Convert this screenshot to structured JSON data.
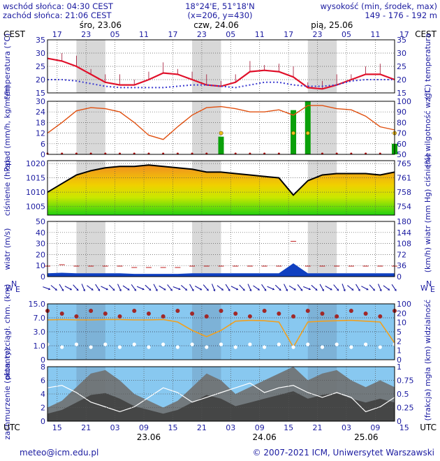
{
  "header": {
    "sunrise": "wschód słońca: 04:30 CEST",
    "sunset": "zachód słońca: 21:06 CEST",
    "coords": "18°24'E, 51°18'N",
    "grid": "(x=206, y=430)",
    "height_title": "wysokość (min, środek, max)",
    "height_values": "149 - 176 - 192 m"
  },
  "top_axis": {
    "tz": "CEST",
    "hours": [
      "17",
      "23",
      "05",
      "11",
      "17",
      "23",
      "05",
      "11",
      "17",
      "23",
      "05",
      "11",
      "17"
    ],
    "days": [
      "śro, 23.06",
      "czw, 24.06",
      "pią, 25.06"
    ]
  },
  "bottom_axis": {
    "tz": "UTC",
    "hours": [
      "15",
      "21",
      "03",
      "09",
      "15",
      "21",
      "03",
      "09",
      "15",
      "21",
      "03",
      "09",
      "15"
    ],
    "days": [
      "23.06",
      "24.06",
      "25.06"
    ]
  },
  "footer": {
    "email": "meteo@icm.edu.pl",
    "copyright": "© 2007-2021 ICM, Uniwersytet Warszawski"
  },
  "colors": {
    "text": "#1a1aa0",
    "temp_line": "#e0102a",
    "dew_line": "#3a3ad0",
    "precip_bar": "#0aa00a",
    "humidity_line": "#e05010",
    "pressure_line": "#000000",
    "wind_fill": "#1040c0",
    "visibility_bg": "#88c8f0",
    "cloud_bg": "#88c8f0",
    "night_shade": "#d8d8d8"
  },
  "chart_data": [
    {
      "type": "line",
      "panel": "temperature",
      "ylabel_left": "temperatura (°C)",
      "ylabel_right": "(°C) temperatura",
      "ylim": [
        15,
        35
      ],
      "yticks": [
        15,
        20,
        25,
        30,
        35
      ],
      "x_hours": [
        0,
        3,
        6,
        9,
        12,
        15,
        18,
        21,
        24,
        27,
        30,
        33,
        36,
        39,
        42,
        45,
        48,
        51,
        54,
        57,
        60,
        63,
        66,
        69,
        72
      ],
      "series": [
        {
          "values": [
            28,
            27,
            25,
            22,
            19,
            18,
            18,
            20,
            22.5,
            22,
            20,
            18,
            17.5,
            19,
            23,
            23.5,
            23,
            21,
            17,
            16.5,
            18,
            20,
            22,
            22,
            20
          ]
        },
        {
          "values": [
            20,
            20,
            19.5,
            18.5,
            17.5,
            17,
            17,
            17,
            17,
            17.5,
            18,
            18,
            17.5,
            17,
            18,
            19,
            19,
            18,
            17.5,
            17.5,
            18,
            19.5,
            20,
            20,
            20
          ]
        }
      ]
    },
    {
      "type": "bar",
      "panel": "precipitation",
      "ylabel_left": "opad (mm/h, kg/m²/h)",
      "ylabel_right": "(%) wilgotność wzgl.",
      "ylim": [
        0,
        30
      ],
      "yticks": [
        0,
        6,
        12,
        18,
        24,
        30
      ],
      "y2lim": [
        50,
        100
      ],
      "y2ticks": [
        50,
        60,
        70,
        80,
        90,
        100
      ],
      "x_hours": [
        0,
        3,
        6,
        9,
        12,
        15,
        18,
        21,
        24,
        27,
        30,
        33,
        36,
        39,
        42,
        45,
        48,
        51,
        54,
        57,
        60,
        63,
        66,
        69,
        72
      ],
      "precip": [
        0,
        0,
        0,
        0,
        0,
        0,
        0,
        0,
        0,
        0,
        0,
        0,
        10,
        0,
        0,
        0,
        0,
        25,
        30,
        0,
        0,
        0,
        0,
        0,
        6
      ],
      "series": [
        {
          "values": [
            70,
            80,
            91,
            94,
            93,
            90,
            80,
            68,
            64,
            76,
            87,
            94,
            95,
            93,
            90,
            90,
            92,
            87,
            96,
            96,
            93,
            92,
            86,
            76,
            73
          ]
        }
      ]
    },
    {
      "type": "area",
      "panel": "pressure",
      "ylabel_left": "ciśnienie (hPa)",
      "ylabel_right": "(mm Hg) ciśnienie",
      "ylim": [
        1002,
        1021
      ],
      "yticks": [
        1005,
        1010,
        1015,
        1020
      ],
      "y2ticks": [
        754,
        758,
        761,
        765
      ],
      "x_hours": [
        0,
        3,
        6,
        9,
        12,
        15,
        18,
        21,
        24,
        27,
        30,
        33,
        36,
        39,
        42,
        45,
        48,
        51,
        54,
        57,
        60,
        63,
        66,
        69,
        72
      ],
      "values": [
        1010,
        1013,
        1016,
        1017.5,
        1018.5,
        1019,
        1019,
        1019.5,
        1019,
        1018.5,
        1018,
        1017,
        1017,
        1016.5,
        1016,
        1015.5,
        1015,
        1009,
        1014,
        1016,
        1016.5,
        1016.5,
        1016.5,
        1016,
        1017
      ]
    },
    {
      "type": "area",
      "panel": "wind",
      "ylabel_left": "wiatr (m/s)",
      "ylabel_right": "(km/h) wiatr",
      "ylim": [
        0,
        50
      ],
      "yticks": [
        0,
        10,
        20,
        30,
        40,
        50
      ],
      "y2ticks": [
        0,
        36,
        72,
        108,
        144,
        180
      ],
      "x_hours": [
        0,
        3,
        6,
        9,
        12,
        15,
        18,
        21,
        24,
        27,
        30,
        33,
        36,
        39,
        42,
        45,
        48,
        51,
        54,
        57,
        60,
        63,
        66,
        69,
        72
      ],
      "values": [
        3,
        3.5,
        3,
        3,
        3,
        3,
        2.5,
        2.5,
        2.5,
        2.5,
        3,
        3,
        3,
        3,
        3,
        3,
        3,
        12,
        3,
        3,
        3,
        3,
        3,
        3,
        3
      ]
    },
    {
      "type": "line",
      "panel": "visibility",
      "ylabel_left": "pion. rozciągł. chm. (km)",
      "ylabel_right": "(km) widzialność",
      "yticks": [
        "0",
        "1.0",
        "3.0",
        "7.0",
        "15.0"
      ],
      "y2ticks": [
        "0",
        "1",
        "2",
        "5",
        "10",
        "20",
        "100"
      ],
      "x_hours": [
        0,
        3,
        6,
        9,
        12,
        15,
        18,
        21,
        24,
        27,
        30,
        33,
        36,
        39,
        42,
        45,
        48,
        51,
        54,
        57,
        60,
        63,
        66,
        69,
        72
      ],
      "series": [
        {
          "values": [
            95,
            96,
            95,
            95,
            96,
            96,
            95,
            95,
            96,
            90,
            70,
            55,
            70,
            92,
            94,
            93,
            90,
            30,
            90,
            92,
            93,
            94,
            92,
            90,
            40
          ]
        }
      ]
    },
    {
      "type": "area",
      "panel": "clouds",
      "ylabel_left": "zachmurzenie (oktanty)",
      "ylabel_right": "(frakcja) mgła",
      "ylim": [
        0,
        8
      ],
      "yticks": [
        0,
        2,
        4,
        6,
        8
      ],
      "y2ticks": [
        "0",
        "0.25",
        "0.5",
        "0.75",
        "1"
      ],
      "x_hours": [
        0,
        3,
        6,
        9,
        12,
        15,
        18,
        21,
        24,
        27,
        30,
        33,
        36,
        39,
        42,
        45,
        48,
        51,
        54,
        57,
        60,
        63,
        66,
        69,
        72
      ],
      "values": [
        2,
        3,
        5,
        7,
        7.5,
        6,
        4,
        3,
        2,
        3,
        5,
        7,
        6,
        4,
        5,
        6,
        7,
        8,
        6,
        7,
        7.5,
        6,
        5,
        6,
        5
      ]
    }
  ]
}
